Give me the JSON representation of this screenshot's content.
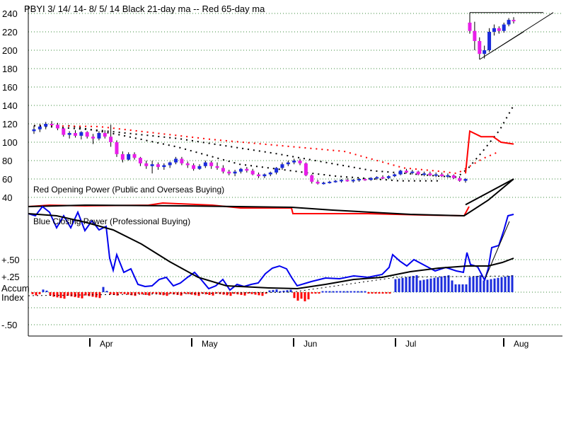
{
  "chart_data": {
    "type": "candlestick",
    "title": "PBYI  3/ 14/ 14- 8/ 5/ 14   Black 21-day ma --  Red 65-day ma",
    "price_pane": {
      "yticks": [
        "240",
        "220",
        "200",
        "180",
        "160",
        "140",
        "120",
        "100",
        "80",
        "60",
        "40"
      ],
      "ylim": [
        30,
        240
      ],
      "grid": true,
      "colors": {
        "up": "#1a2bdc",
        "down": "#e81ee8",
        "ma21": "#000000",
        "ma65": "#ff0000"
      },
      "candles": [
        [
          112,
          118,
          109,
          114
        ],
        [
          114,
          120,
          111,
          117
        ],
        [
          117,
          122,
          114,
          120
        ],
        [
          120,
          123,
          117,
          119
        ],
        [
          119,
          121,
          113,
          115
        ],
        [
          115,
          116,
          106,
          108
        ],
        [
          108,
          112,
          104,
          110
        ],
        [
          110,
          113,
          105,
          107
        ],
        [
          107,
          112,
          103,
          111
        ],
        [
          111,
          112,
          104,
          106
        ],
        [
          106,
          109,
          98,
          104
        ],
        [
          104,
          112,
          102,
          110
        ],
        [
          110,
          113,
          104,
          106
        ],
        [
          106,
          119,
          95,
          100
        ],
        [
          100,
          102,
          84,
          87
        ],
        [
          87,
          90,
          78,
          81
        ],
        [
          81,
          89,
          80,
          87
        ],
        [
          87,
          89,
          81,
          83
        ],
        [
          83,
          84,
          74,
          77
        ],
        [
          77,
          80,
          71,
          74
        ],
        [
          74,
          80,
          66,
          76
        ],
        [
          76,
          78,
          70,
          73
        ],
        [
          73,
          77,
          70,
          75
        ],
        [
          75,
          79,
          72,
          78
        ],
        [
          78,
          84,
          76,
          82
        ],
        [
          82,
          84,
          75,
          77
        ],
        [
          77,
          79,
          72,
          75
        ],
        [
          75,
          77,
          69,
          71
        ],
        [
          71,
          76,
          70,
          74
        ],
        [
          74,
          80,
          72,
          78
        ],
        [
          78,
          80,
          71,
          74
        ],
        [
          74,
          78,
          70,
          72
        ],
        [
          72,
          75,
          66,
          68
        ],
        [
          68,
          70,
          64,
          66
        ],
        [
          66,
          70,
          63,
          68
        ],
        [
          68,
          72,
          66,
          71
        ],
        [
          71,
          73,
          67,
          69
        ],
        [
          69,
          71,
          64,
          65
        ],
        [
          65,
          67,
          61,
          63
        ],
        [
          63,
          66,
          61,
          65
        ],
        [
          65,
          68,
          63,
          67
        ],
        [
          67,
          73,
          65,
          72
        ],
        [
          72,
          78,
          70,
          76
        ],
        [
          76,
          80,
          74,
          78
        ],
        [
          78,
          82,
          76,
          80
        ],
        [
          80,
          82,
          75,
          77
        ],
        [
          77,
          78,
          63,
          64
        ],
        [
          64,
          65,
          55,
          57
        ],
        [
          57,
          59,
          54,
          55
        ],
        [
          55,
          57,
          54,
          56
        ],
        [
          56,
          58,
          55,
          57
        ],
        [
          57,
          59,
          56,
          58
        ],
        [
          58,
          60,
          56,
          59
        ],
        [
          59,
          61,
          57,
          58
        ],
        [
          58,
          60,
          56,
          59
        ],
        [
          59,
          61,
          57,
          60
        ],
        [
          60,
          61,
          58,
          59
        ],
        [
          59,
          62,
          58,
          61
        ],
        [
          61,
          63,
          59,
          62
        ],
        [
          62,
          64,
          60,
          61
        ],
        [
          61,
          64,
          60,
          63
        ],
        [
          63,
          66,
          62,
          65
        ],
        [
          65,
          70,
          64,
          69
        ],
        [
          69,
          71,
          66,
          67
        ],
        [
          67,
          70,
          65,
          68
        ],
        [
          68,
          69,
          64,
          65
        ],
        [
          65,
          68,
          63,
          66
        ],
        [
          66,
          68,
          63,
          64
        ],
        [
          64,
          67,
          62,
          65
        ],
        [
          65,
          67,
          62,
          63
        ],
        [
          63,
          66,
          61,
          64
        ],
        [
          64,
          65,
          60,
          61
        ],
        [
          61,
          63,
          57,
          58
        ],
        [
          58,
          61,
          56,
          60
        ],
        [
          230,
          241,
          218,
          221
        ],
        [
          221,
          231,
          200,
          210
        ],
        [
          210,
          214,
          190,
          196
        ],
        [
          196,
          205,
          191,
          200
        ],
        [
          200,
          224,
          198,
          220
        ],
        [
          220,
          228,
          216,
          224
        ],
        [
          224,
          226,
          218,
          221
        ],
        [
          221,
          230,
          219,
          228
        ],
        [
          228,
          235,
          226,
          233
        ],
        [
          233,
          236,
          229,
          232
        ]
      ],
      "ma21_points": [
        [
          12,
          118
        ],
        [
          30,
          108
        ],
        [
          50,
          95
        ],
        [
          72,
          76
        ],
        [
          95,
          67
        ],
        [
          106,
          63
        ],
        [
          128,
          58
        ],
        [
          142,
          58
        ]
      ],
      "ma65_points": [
        [
          0,
          120
        ],
        [
          20,
          114
        ],
        [
          46,
          107
        ],
        [
          74,
          94
        ],
        [
          100,
          76
        ],
        [
          120,
          66
        ],
        [
          124,
          65
        ],
        [
          126,
          83
        ],
        [
          132,
          100
        ],
        [
          142,
          112
        ],
        [
          150,
          118
        ],
        [
          156,
          122
        ],
        [
          162,
          127
        ],
        [
          166,
          135
        ],
        [
          168,
          140
        ]
      ],
      "ma65_solid": [
        [
          124,
          66
        ],
        [
          125,
          112
        ],
        [
          128,
          108
        ],
        [
          131,
          105
        ],
        [
          135,
          105
        ],
        [
          137,
          100
        ],
        [
          139,
          97
        ],
        [
          142,
          97
        ]
      ],
      "breakout_triangle": [
        [
          125,
          241
        ],
        [
          142,
          241
        ],
        [
          150,
          241
        ],
        [
          131,
          190
        ],
        [
          140,
          191
        ],
        [
          150,
          241
        ]
      ]
    },
    "opening_power": {
      "label": "Red Opening Power (Public and Overseas Buying)",
      "color": "#ff0000",
      "values": [
        0,
        3,
        4,
        4,
        3,
        3,
        2,
        2,
        1,
        1,
        0,
        -1,
        -2,
        -2,
        -2,
        -3,
        -3,
        -3,
        -3,
        -2,
        -2,
        -2,
        -2,
        -2,
        -2,
        -3,
        -3,
        -3,
        -2,
        -1,
        -1,
        -2,
        -2,
        -2,
        -2,
        -3,
        -3,
        -3,
        -3,
        -3,
        -3,
        -3,
        -3,
        -3,
        -2,
        -2,
        -3,
        -3,
        -3,
        -3,
        -3,
        -3,
        -3,
        -3,
        -3,
        -3,
        -3,
        -3,
        -3,
        -3,
        -4,
        -3,
        -3,
        -4,
        -4,
        -4,
        -4,
        -3,
        -3,
        -3,
        -4,
        -4,
        -4,
        -5,
        -5,
        -5,
        -6,
        -6,
        -6,
        -6,
        -6,
        -6,
        -6,
        -6,
        -6,
        -6,
        -6,
        -7,
        -7,
        -7,
        -7,
        -7,
        -7,
        -7,
        -7,
        -7,
        -7,
        -7,
        -7,
        -7,
        -8,
        -8,
        -8,
        -8,
        -8,
        -8,
        -8,
        -8,
        -8,
        -8,
        -8,
        -8,
        -8,
        -8,
        -8,
        -8,
        -8,
        -8,
        -8,
        -8,
        -8,
        -8,
        -8,
        -8,
        -8,
        -8,
        -8,
        -8,
        -8,
        -8,
        -8,
        -8,
        -8,
        -8,
        -8,
        -8,
        -8,
        -8,
        -8,
        -8,
        -8,
        -8,
        -8,
        -8,
        -8,
        -8,
        -8,
        -8,
        -8,
        -8,
        -8,
        -8,
        -8,
        -8,
        60,
        55,
        50,
        48,
        46,
        44,
        42,
        42
      ]
    },
    "closing_power": {
      "label": "Blue Closing Power (Professional Buying)",
      "color": "#0000ee"
    },
    "accum_pane": {
      "label_line1": "Accum",
      "label_line2": "Index",
      "yticks": [
        ".50",
        ".25",
        ".00",
        "-.25",
        "-.50"
      ],
      "yticks_print": [
        "+.50",
        "+.25",
        "",
        "",
        "-.50"
      ],
      "ylim": [
        -0.5,
        0.5
      ],
      "pos_color": "#1a2bdc",
      "neg_color": "#ff0000"
    },
    "months": [
      "Apr",
      "May",
      "Jun",
      "Jul",
      "Aug"
    ]
  }
}
